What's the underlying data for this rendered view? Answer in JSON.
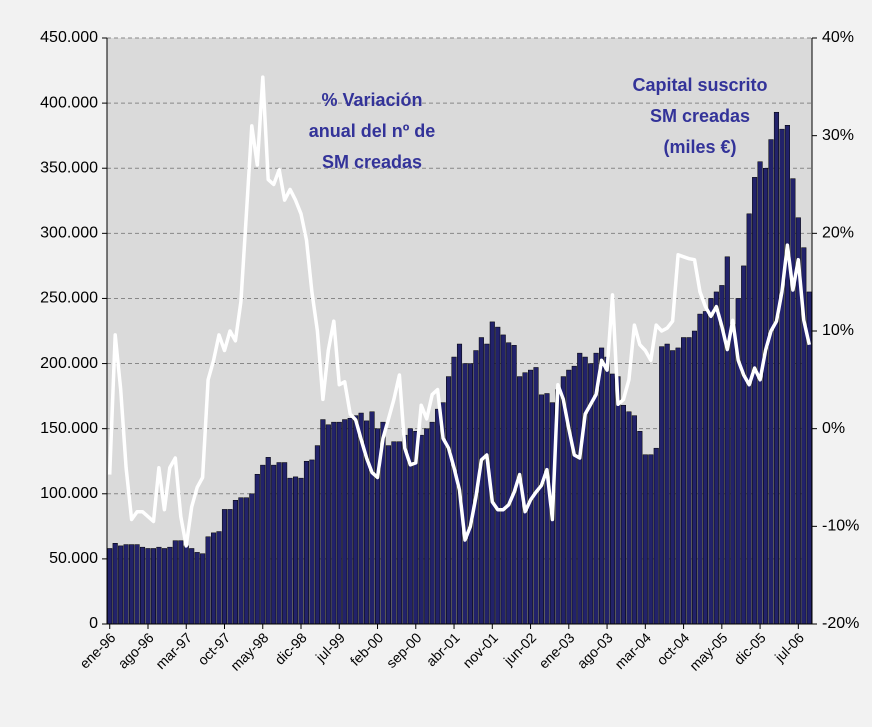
{
  "chart_data": {
    "type": "bar-line",
    "annotations": [
      [
        "% Variación",
        "anual del nº de",
        "SM creadas"
      ],
      [
        "Capital suscrito",
        "SM creadas",
        "(miles €)"
      ]
    ],
    "categories": [
      "ene-96",
      null,
      null,
      null,
      null,
      null,
      null,
      "ago-96",
      null,
      null,
      null,
      null,
      null,
      null,
      "mar-97",
      null,
      null,
      null,
      null,
      null,
      null,
      "oct-97",
      null,
      null,
      null,
      null,
      null,
      null,
      "may-98",
      null,
      null,
      null,
      null,
      null,
      null,
      "dic-98",
      null,
      null,
      null,
      null,
      null,
      null,
      "jul-99",
      null,
      null,
      null,
      null,
      null,
      null,
      "feb-00",
      null,
      null,
      null,
      null,
      null,
      null,
      "sep-00",
      null,
      null,
      null,
      null,
      null,
      null,
      "abr-01",
      null,
      null,
      null,
      null,
      null,
      null,
      "nov-01",
      null,
      null,
      null,
      null,
      null,
      null,
      "jun-02",
      null,
      null,
      null,
      null,
      null,
      null,
      "ene-03",
      null,
      null,
      null,
      null,
      null,
      null,
      "ago-03",
      null,
      null,
      null,
      null,
      null,
      null,
      "mar-04",
      null,
      null,
      null,
      null,
      null,
      null,
      "oct-04",
      null,
      null,
      null,
      null,
      null,
      null,
      "may-05",
      null,
      null,
      null,
      null,
      null,
      null,
      "dic-05",
      null,
      null,
      null,
      null,
      null,
      null,
      "jul-06",
      null,
      null
    ],
    "series": [
      {
        "type": "bar",
        "color": "#22226a",
        "values": [
          58000,
          62000,
          60000,
          61000,
          61000,
          61000,
          59000,
          58000,
          58000,
          59000,
          58000,
          59000,
          64000,
          64000,
          60000,
          58000,
          55000,
          54000,
          67000,
          70000,
          71000,
          88000,
          88000,
          95000,
          97000,
          97000,
          100000,
          115000,
          122000,
          128000,
          122000,
          124000,
          124000,
          112000,
          113000,
          112000,
          125000,
          126000,
          137000,
          157000,
          153000,
          155000,
          155000,
          157000,
          158000,
          160000,
          162000,
          156000,
          163000,
          150000,
          155000,
          137000,
          140000,
          140000,
          145000,
          150000,
          148000,
          145000,
          150000,
          155000,
          165000,
          170000,
          190000,
          205000,
          215000,
          200000,
          200000,
          210000,
          220000,
          215000,
          232000,
          228000,
          222000,
          216000,
          214000,
          190000,
          193000,
          195000,
          197000,
          176000,
          177000,
          170000,
          180000,
          190000,
          195000,
          198000,
          208000,
          205000,
          200000,
          208000,
          212000,
          205000,
          192000,
          190000,
          168000,
          163000,
          160000,
          148000,
          130000,
          130000,
          135000,
          213000,
          215000,
          210000,
          212000,
          220000,
          220000,
          225000,
          238000,
          240000,
          250000,
          255000,
          260000,
          282000,
          230000,
          250000,
          275000,
          315000,
          343000,
          355000,
          350000,
          372000,
          393000,
          380000,
          383000,
          342000,
          312000,
          289000,
          255000
        ]
      },
      {
        "type": "line",
        "axis": "y2",
        "color": "#ffffff",
        "values": [
          -4.7,
          9.6,
          4,
          -4,
          -9.3,
          -8.5,
          -8.5,
          -9,
          -9.5,
          -4,
          -8.3,
          -4,
          -3,
          -9,
          -12,
          -8,
          -6,
          -5,
          5,
          7,
          9.6,
          8,
          10,
          9,
          13,
          22,
          31,
          27,
          36,
          25.5,
          25,
          26.5,
          23.4,
          24.5,
          23.4,
          22,
          19.3,
          14,
          10,
          3,
          8,
          11,
          4.5,
          4.8,
          1.5,
          0.9,
          -1.1,
          -3,
          -4.5,
          -5,
          -1,
          1,
          3,
          5.5,
          -2,
          -3.7,
          -3.5,
          2.4,
          1,
          3.5,
          4,
          -1,
          -2,
          -4,
          -6.3,
          -11.4,
          -10,
          -7,
          -3.2,
          -2.7,
          -7.5,
          -8.3,
          -8.3,
          -7.8,
          -6.5,
          -4.7,
          -8.5,
          -7.3,
          -6.5,
          -5.8,
          -4.2,
          -9.3,
          4.5,
          3,
          0,
          -2.7,
          -3,
          1.5,
          2.5,
          3.5,
          7,
          6,
          13.7,
          2.5,
          3,
          5,
          10.6,
          8.6,
          8,
          7,
          10.6,
          10,
          10.3,
          11,
          17.8,
          17.6,
          17.4,
          17.3,
          14,
          12.5,
          11.5,
          12.5,
          10.5,
          8.1,
          11.1,
          7,
          5.5,
          4.5,
          6.2,
          5,
          8,
          10,
          11,
          14,
          18.8,
          14.2,
          17.3,
          11.1,
          8.6
        ]
      }
    ],
    "ylim": [
      0,
      450000
    ],
    "yticks": [
      0,
      {
        "value": 50000,
        "label": "50.000"
      },
      {
        "value": 100000,
        "label": "100.000"
      },
      {
        "value": 150000,
        "label": "150.000"
      },
      {
        "value": 200000,
        "label": "200.000"
      },
      {
        "value": 250000,
        "label": "250.000"
      },
      {
        "value": 300000,
        "label": "300.000"
      },
      {
        "value": 350000,
        "label": "350.000"
      },
      {
        "value": 400000,
        "label": "400.000"
      },
      {
        "value": 450000,
        "label": "450.000"
      }
    ],
    "y2lim": [
      -20,
      40
    ],
    "y2ticks": [
      {
        "value": -20,
        "label": "-20%"
      },
      {
        "value": -10,
        "label": "-10%"
      },
      {
        "value": 0,
        "label": "0%"
      },
      {
        "value": 10,
        "label": "10%"
      },
      {
        "value": 20,
        "label": "20%"
      },
      {
        "value": 30,
        "label": "30%"
      },
      {
        "value": 40,
        "label": "40%"
      }
    ],
    "grid": true
  }
}
